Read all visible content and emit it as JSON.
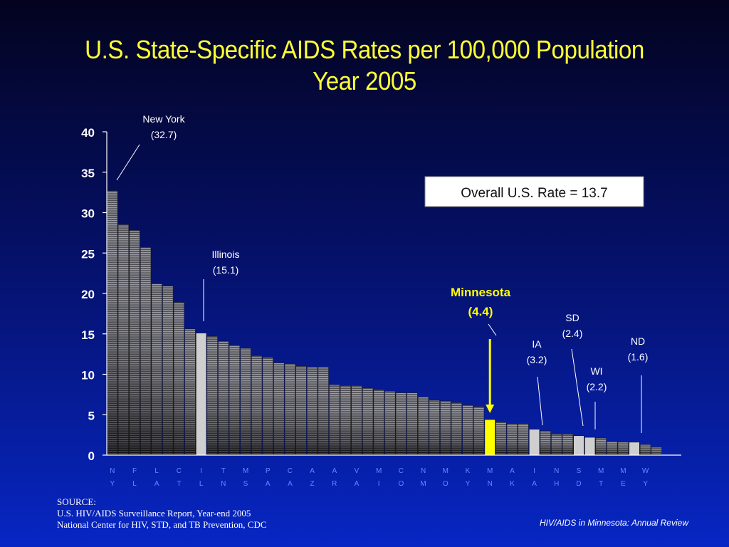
{
  "title": {
    "line1": "U.S. State-Specific AIDS Rates per 100,000 Population",
    "line2": "Year 2005"
  },
  "source": {
    "heading": "SOURCE:",
    "line1": "U.S. HIV/AIDS Surveillance Report, Year-end 2005",
    "line2": "National Center for HIV, STD, and TB Prevention, CDC"
  },
  "footer_note": "HIV/AIDS in Minnesota: Annual Review",
  "colors": {
    "title": "#ffff33",
    "highlight_minnesota": "#ffff00",
    "highlight_labeled": "#cfcfcf",
    "bar": "#6f6f78",
    "axis": "#ffffff",
    "state_labels": "#6688ff"
  },
  "chart_data": {
    "type": "bar",
    "ylim": [
      0,
      40
    ],
    "yticks": [
      0,
      5,
      10,
      15,
      20,
      25,
      30,
      35,
      40
    ],
    "xlabel": "",
    "ylabel": "",
    "values": [
      32.7,
      28.5,
      27.8,
      25.7,
      21.2,
      20.9,
      18.9,
      15.6,
      15.1,
      14.7,
      14.1,
      13.6,
      13.2,
      12.3,
      12.1,
      11.4,
      11.3,
      11.0,
      10.9,
      10.9,
      8.7,
      8.6,
      8.6,
      8.3,
      8.1,
      7.9,
      7.7,
      7.7,
      7.2,
      6.8,
      6.7,
      6.5,
      6.2,
      6.0,
      4.4,
      4.1,
      3.9,
      3.9,
      3.2,
      3.0,
      2.6,
      2.6,
      2.4,
      2.2,
      2.1,
      1.7,
      1.6,
      1.6,
      1.3,
      1.0
    ],
    "highlight": {
      "8": "labeled",
      "34": "minnesota",
      "38": "labeled",
      "42": "labeled",
      "43": "labeled",
      "47": "labeled"
    },
    "state_labels": [
      {
        "bar": 0,
        "top": "N",
        "bottom": "Y"
      },
      {
        "bar": 2,
        "top": "F",
        "bottom": "L"
      },
      {
        "bar": 4,
        "top": "L",
        "bottom": "A"
      },
      {
        "bar": 6,
        "top": "C",
        "bottom": "T"
      },
      {
        "bar": 8,
        "top": "I",
        "bottom": "L"
      },
      {
        "bar": 10,
        "top": "T",
        "bottom": "N"
      },
      {
        "bar": 12,
        "top": "M",
        "bottom": "S"
      },
      {
        "bar": 14,
        "top": "P",
        "bottom": "A"
      },
      {
        "bar": 16,
        "top": "C",
        "bottom": "A"
      },
      {
        "bar": 18,
        "top": "A",
        "bottom": "Z"
      },
      {
        "bar": 20,
        "top": "A",
        "bottom": "R"
      },
      {
        "bar": 22,
        "top": "V",
        "bottom": "A"
      },
      {
        "bar": 24,
        "top": "M",
        "bottom": "I"
      },
      {
        "bar": 26,
        "top": "C",
        "bottom": "O"
      },
      {
        "bar": 28,
        "top": "N",
        "bottom": "M"
      },
      {
        "bar": 30,
        "top": "M",
        "bottom": "O"
      },
      {
        "bar": 32,
        "top": "K",
        "bottom": "Y"
      },
      {
        "bar": 34,
        "top": "M",
        "bottom": "N"
      },
      {
        "bar": 36,
        "top": "A",
        "bottom": "K"
      },
      {
        "bar": 38,
        "top": "I",
        "bottom": "A"
      },
      {
        "bar": 40,
        "top": "N",
        "bottom": "H"
      },
      {
        "bar": 42,
        "top": "S",
        "bottom": "D"
      },
      {
        "bar": 44,
        "top": "M",
        "bottom": "T"
      },
      {
        "bar": 46,
        "top": "M",
        "bottom": "E"
      },
      {
        "bar": 48,
        "top": "W",
        "bottom": "Y"
      }
    ],
    "annotations": [
      {
        "name": "new-york",
        "lines": [
          "New York",
          "(32.7)"
        ],
        "bar": 0,
        "bold": false
      },
      {
        "name": "illinois",
        "lines": [
          "Illinois",
          "(15.1)"
        ],
        "bar": 8,
        "bold": false
      },
      {
        "name": "minnesota",
        "lines": [
          "Minnesota",
          "(4.4)"
        ],
        "bar": 34,
        "bold": true
      },
      {
        "name": "iowa",
        "lines": [
          "IA",
          "(3.2)"
        ],
        "bar": 38,
        "bold": false
      },
      {
        "name": "south-dakota",
        "lines": [
          "SD",
          "(2.4)"
        ],
        "bar": 42,
        "bold": false
      },
      {
        "name": "wisconsin",
        "lines": [
          "WI",
          "(2.2)"
        ],
        "bar": 43,
        "bold": false
      },
      {
        "name": "north-dakota",
        "lines": [
          "ND",
          "(1.6)"
        ],
        "bar": 47,
        "bold": false
      }
    ],
    "reference_box": "Overall U.S. Rate = 13.7"
  }
}
